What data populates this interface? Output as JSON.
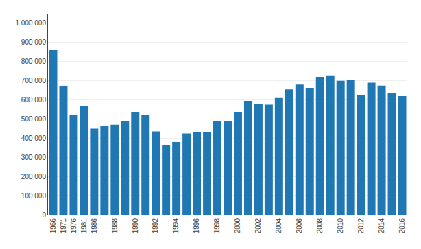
{
  "chart_data": {
    "type": "bar",
    "categories": [
      "1966",
      "1971",
      "1976",
      "1981",
      "1986",
      null,
      "1988",
      null,
      "1990",
      null,
      "1992",
      null,
      "1994",
      null,
      "1996",
      null,
      "1998",
      null,
      "2000",
      null,
      "2002",
      null,
      "2004",
      null,
      "2006",
      null,
      "2008",
      null,
      "2010",
      null,
      "2012",
      null,
      "2014",
      null,
      "2016"
    ],
    "values": [
      860000,
      670000,
      520000,
      570000,
      450000,
      465000,
      470000,
      490000,
      535000,
      520000,
      435000,
      365000,
      380000,
      425000,
      430000,
      430000,
      490000,
      490000,
      535000,
      595000,
      580000,
      575000,
      610000,
      655000,
      680000,
      660000,
      720000,
      725000,
      700000,
      705000,
      625000,
      690000,
      675000,
      635000,
      620000
    ],
    "color": "#1f77b4",
    "ylim": [
      0,
      1050000
    ],
    "yticks": [
      0,
      {
        "value": 100000,
        "label": "100 000"
      },
      {
        "value": 200000,
        "label": "200 000"
      },
      {
        "value": 300000,
        "label": "300 000"
      },
      {
        "value": 400000,
        "label": "400 000"
      },
      {
        "value": 500000,
        "label": "500 000"
      },
      {
        "value": 600000,
        "label": "600 000"
      },
      {
        "value": 700000,
        "label": "700 000"
      },
      {
        "value": 800000,
        "label": "800 000"
      },
      {
        "value": 900000,
        "label": "900 000"
      },
      {
        "value": 1000000,
        "label": "1 000 000"
      }
    ],
    "grid": true
  }
}
